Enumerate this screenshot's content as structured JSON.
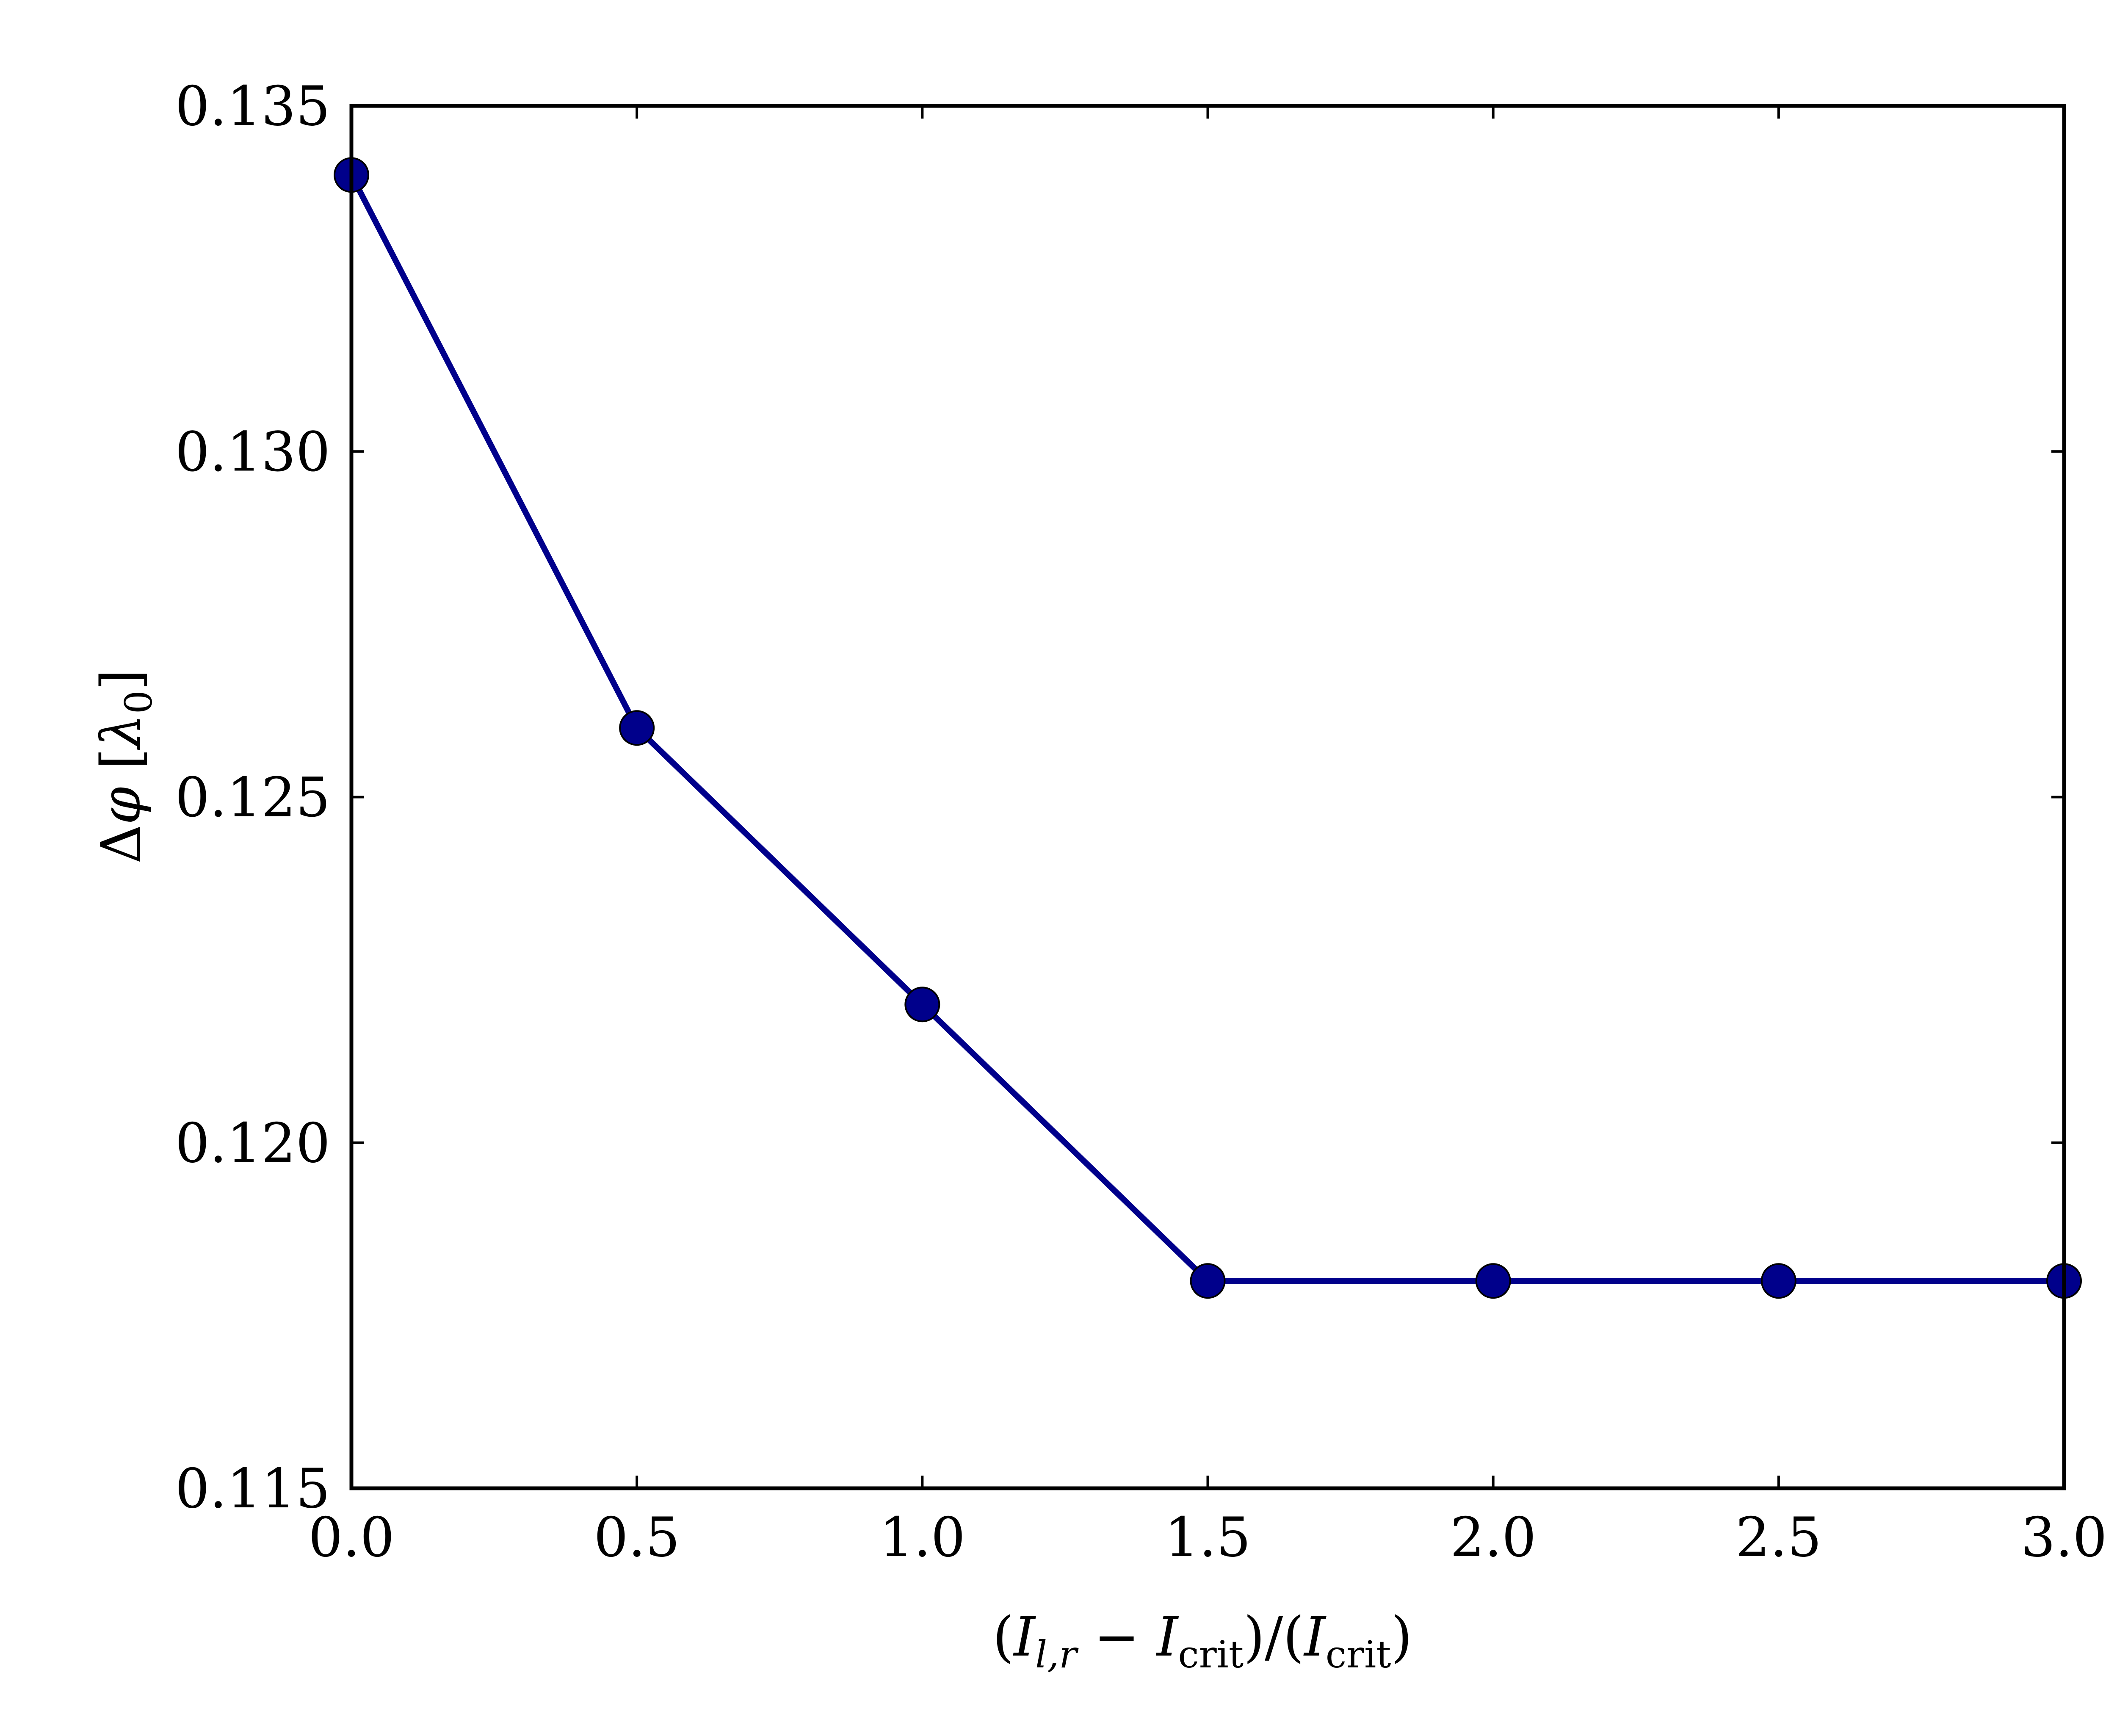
{
  "chart_data": {
    "type": "line",
    "title": "",
    "xlabel": "(I_{l,r} − I_crit)/(I_crit)",
    "ylabel": "Δφ [λ0]",
    "xlim": [
      0.0,
      3.0
    ],
    "ylim": [
      0.115,
      0.135
    ],
    "x_ticks": [
      "0.0",
      "0.5",
      "1.0",
      "1.5",
      "2.0",
      "2.5",
      "3.0"
    ],
    "y_ticks": [
      "0.115",
      "0.120",
      "0.125",
      "0.130",
      "0.135"
    ],
    "grid": false,
    "series": [
      {
        "x": [
          0.0,
          0.5,
          1.0,
          1.5,
          2.0,
          2.5,
          3.0
        ],
        "y": [
          0.134,
          0.126,
          0.122,
          0.118,
          0.118,
          0.118,
          0.118
        ],
        "color": "#00008b",
        "marker": "circle"
      }
    ]
  }
}
